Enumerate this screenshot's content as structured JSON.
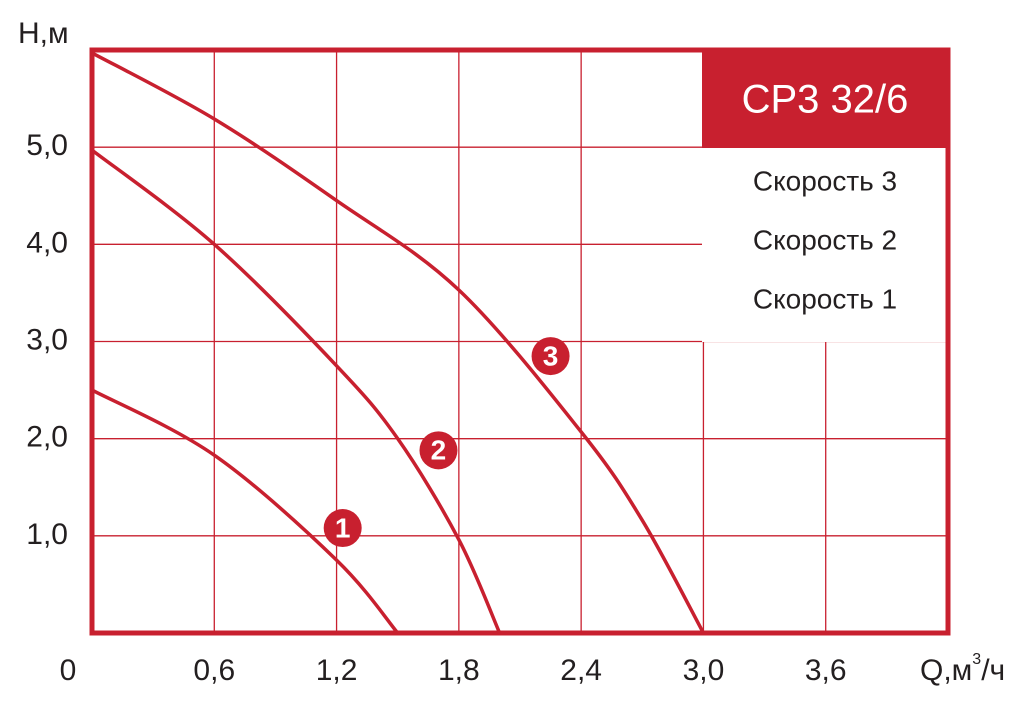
{
  "chart_data": {
    "type": "line",
    "title": "СР3 32/6",
    "y_label": "Н,м",
    "x_label": {
      "text": "Q,м",
      "sup": "3",
      "tail": "/ч"
    },
    "xlim": [
      0,
      4.2
    ],
    "ylim": [
      0,
      6
    ],
    "xticks": [
      0,
      {
        "value": 0.6,
        "label": "0,6"
      },
      {
        "value": 1.2,
        "label": "1,2"
      },
      {
        "value": 1.8,
        "label": "1,8"
      },
      {
        "value": 2.4,
        "label": "2,4"
      },
      {
        "value": 3.0,
        "label": "3,0"
      },
      {
        "value": 3.6,
        "label": "3,6"
      }
    ],
    "yticks": [
      {
        "value": 1,
        "label": "1,0"
      },
      {
        "value": 2,
        "label": "2,0"
      },
      {
        "value": 3,
        "label": "3,0"
      },
      {
        "value": 4,
        "label": "4,0"
      },
      {
        "value": 5,
        "label": "5,0"
      }
    ],
    "grid": true,
    "color": "#c8202f",
    "series": [
      {
        "name": "Скорость 3",
        "marker": "3",
        "color": "#c8202f",
        "x": [
          0,
          0.6,
          1.2,
          1.8,
          2.4,
          2.7,
          3.0
        ],
        "values": [
          5.97,
          5.29,
          4.45,
          3.53,
          2.07,
          1.16,
          0
        ]
      },
      {
        "name": "Скорость 2",
        "marker": "2",
        "color": "#c8202f",
        "x": [
          0,
          0.6,
          1.2,
          1.5,
          1.8,
          2.0
        ],
        "values": [
          4.97,
          4.0,
          2.75,
          2.0,
          0.96,
          0
        ]
      },
      {
        "name": "Скорость 1",
        "marker": "1",
        "color": "#c8202f",
        "x": [
          0,
          0.6,
          1.2,
          1.5
        ],
        "values": [
          2.5,
          1.83,
          0.75,
          0
        ]
      }
    ]
  }
}
